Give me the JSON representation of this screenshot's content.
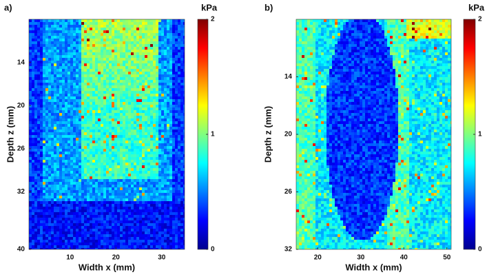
{
  "chart_data": [
    {
      "type": "heatmap",
      "label": "a)",
      "xlabel": "Width x (mm)",
      "ylabel": "Depth z (mm)",
      "xlim": [
        1,
        35
      ],
      "xticks": [
        10,
        20,
        30
      ],
      "ylim": [
        8,
        40
      ],
      "yticks": [
        14,
        20,
        26,
        32,
        40
      ],
      "colorbar_label": "kPa",
      "clim": [
        0,
        2
      ],
      "cticks": [
        0,
        1,
        2
      ],
      "colormap": "jet"
    },
    {
      "type": "heatmap",
      "label": "b)",
      "xlabel": "Width x (mm)",
      "ylabel": "Depth z (mm)",
      "xlim": [
        15,
        51
      ],
      "xticks": [
        20,
        30,
        40,
        50
      ],
      "ylim": [
        8,
        32
      ],
      "yticks": [
        14,
        20,
        26,
        32
      ],
      "colorbar_label": "kPa",
      "clim": [
        0,
        2
      ],
      "cticks": [
        0,
        1,
        2
      ],
      "colormap": "jet"
    }
  ]
}
